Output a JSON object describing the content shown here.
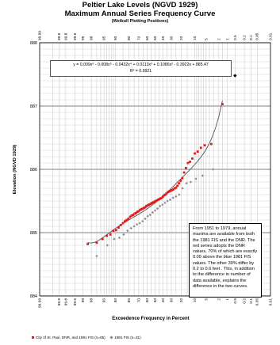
{
  "chart_data": {
    "type": "scatter",
    "title": "Peltier Lake Levels (NGVD 1929)",
    "subtitle": "Maximum Annual Series Frequency Curve",
    "subtitle2": "(Weibull Plotting Positions)",
    "xlabel": "Exceedence Frequency in Percent",
    "ylabel": "Elevation (NGVD 1929)",
    "ylim": [
      884,
      888
    ],
    "y_ticks": [
      "888",
      "887",
      "886",
      "885",
      "884"
    ],
    "x_ticks": [
      "99.99",
      "99.9",
      "99.8",
      "99.5",
      "99",
      "98",
      "95",
      "90",
      "80",
      "70",
      "60",
      "50",
      "40",
      "30",
      "20",
      "10",
      "5",
      "2",
      "1",
      "0.5",
      "0.2",
      "0.1",
      "0.05",
      "0.01"
    ],
    "equation": "y = 0.009x⁶ - 0.008x⁵ - 0.0432x⁴ + 0.0113x³ + 0.1086x² - 0.3922x + 885.47",
    "r_squared": "R² = 0.9921",
    "note": "From 1951 to 1979, annual maxima are available from both the 1981 FIS and the DNR.  The red series adopts the DNR values, 70% of which are exactly 0.09 above the blue 1981 FIS values. The other 30% differ by 0.2 to 0.6 feet .  This, in addition to the difference in number of data available, explains the difference in the two curves.",
    "legend": [
      "City of St. Paul, DNR, and 1981 FIS (n=65)",
      "1981 FIS (n=31)"
    ],
    "colors": {
      "red_series": "#e31a1c",
      "gray_series": "#8a8a8a",
      "curve": "#555555",
      "outlier": "#000000"
    },
    "series": [
      {
        "name": "City of St. Paul, DNR, and 1981 FIS (n=65)",
        "marker": "square",
        "points": [
          [
            98.5,
            884.82
          ],
          [
            97.0,
            884.84
          ],
          [
            95.5,
            884.9
          ],
          [
            94.0,
            884.95
          ],
          [
            92.5,
            884.97
          ],
          [
            91.0,
            885.03
          ],
          [
            89.5,
            885.04
          ],
          [
            88.0,
            885.08
          ],
          [
            86.5,
            885.12
          ],
          [
            85.0,
            885.15
          ],
          [
            83.5,
            885.18
          ],
          [
            82.0,
            885.2
          ],
          [
            80.5,
            885.22
          ],
          [
            79.0,
            885.25
          ],
          [
            77.5,
            885.27
          ],
          [
            76.0,
            885.28
          ],
          [
            74.5,
            885.3
          ],
          [
            73.0,
            885.31
          ],
          [
            71.5,
            885.33
          ],
          [
            70.0,
            885.34
          ],
          [
            68.5,
            885.36
          ],
          [
            67.0,
            885.37
          ],
          [
            65.5,
            885.38
          ],
          [
            64.0,
            885.39
          ],
          [
            62.5,
            885.4
          ],
          [
            61.0,
            885.42
          ],
          [
            59.5,
            885.43
          ],
          [
            58.0,
            885.44
          ],
          [
            56.5,
            885.45
          ],
          [
            55.0,
            885.46
          ],
          [
            53.5,
            885.47
          ],
          [
            52.0,
            885.48
          ],
          [
            50.5,
            885.49
          ],
          [
            49.0,
            885.5
          ],
          [
            47.5,
            885.51
          ],
          [
            46.0,
            885.52
          ],
          [
            44.5,
            885.53
          ],
          [
            43.0,
            885.54
          ],
          [
            41.5,
            885.55
          ],
          [
            40.0,
            885.57
          ],
          [
            38.5,
            885.59
          ],
          [
            37.0,
            885.6
          ],
          [
            35.5,
            885.62
          ],
          [
            34.0,
            885.64
          ],
          [
            32.5,
            885.65
          ],
          [
            31.0,
            885.66
          ],
          [
            29.5,
            885.67
          ],
          [
            28.0,
            885.68
          ],
          [
            26.5,
            885.7
          ],
          [
            25.0,
            885.71
          ],
          [
            23.5,
            885.74
          ],
          [
            22.0,
            885.78
          ],
          [
            20.5,
            885.82
          ],
          [
            19.0,
            885.86
          ],
          [
            17.5,
            885.95
          ],
          [
            16.0,
            886.02
          ],
          [
            14.5,
            886.1
          ],
          [
            13.0,
            886.12
          ],
          [
            11.5,
            886.17
          ],
          [
            10.0,
            886.25
          ],
          [
            8.5,
            886.28
          ],
          [
            7.0,
            886.34
          ],
          [
            5.5,
            886.38
          ],
          [
            3.5,
            886.4
          ],
          [
            1.5,
            887.03
          ]
        ]
      },
      {
        "name": "1981 FIS (n=31)",
        "marker": "diamond",
        "points": [
          [
            97.0,
            884.63
          ],
          [
            93.8,
            884.8
          ],
          [
            90.6,
            884.9
          ],
          [
            87.5,
            884.92
          ],
          [
            84.4,
            884.97
          ],
          [
            81.3,
            885.03
          ],
          [
            78.1,
            885.07
          ],
          [
            75.0,
            885.1
          ],
          [
            71.9,
            885.13
          ],
          [
            68.8,
            885.15
          ],
          [
            65.6,
            885.18
          ],
          [
            62.5,
            885.22
          ],
          [
            59.4,
            885.26
          ],
          [
            56.3,
            885.28
          ],
          [
            53.1,
            885.32
          ],
          [
            50.0,
            885.35
          ],
          [
            46.9,
            885.38
          ],
          [
            43.8,
            885.42
          ],
          [
            40.6,
            885.44
          ],
          [
            37.5,
            885.47
          ],
          [
            34.4,
            885.5
          ],
          [
            31.3,
            885.52
          ],
          [
            28.1,
            885.55
          ],
          [
            25.0,
            885.57
          ],
          [
            21.9,
            885.6
          ],
          [
            18.8,
            885.7
          ],
          [
            15.6,
            885.78
          ],
          [
            12.5,
            885.8
          ],
          [
            9.4,
            885.85
          ],
          [
            6.3,
            885.9
          ],
          [
            3.1,
            886.0
          ]
        ]
      }
    ],
    "outlier": [
      0.5,
      887.48
    ]
  }
}
